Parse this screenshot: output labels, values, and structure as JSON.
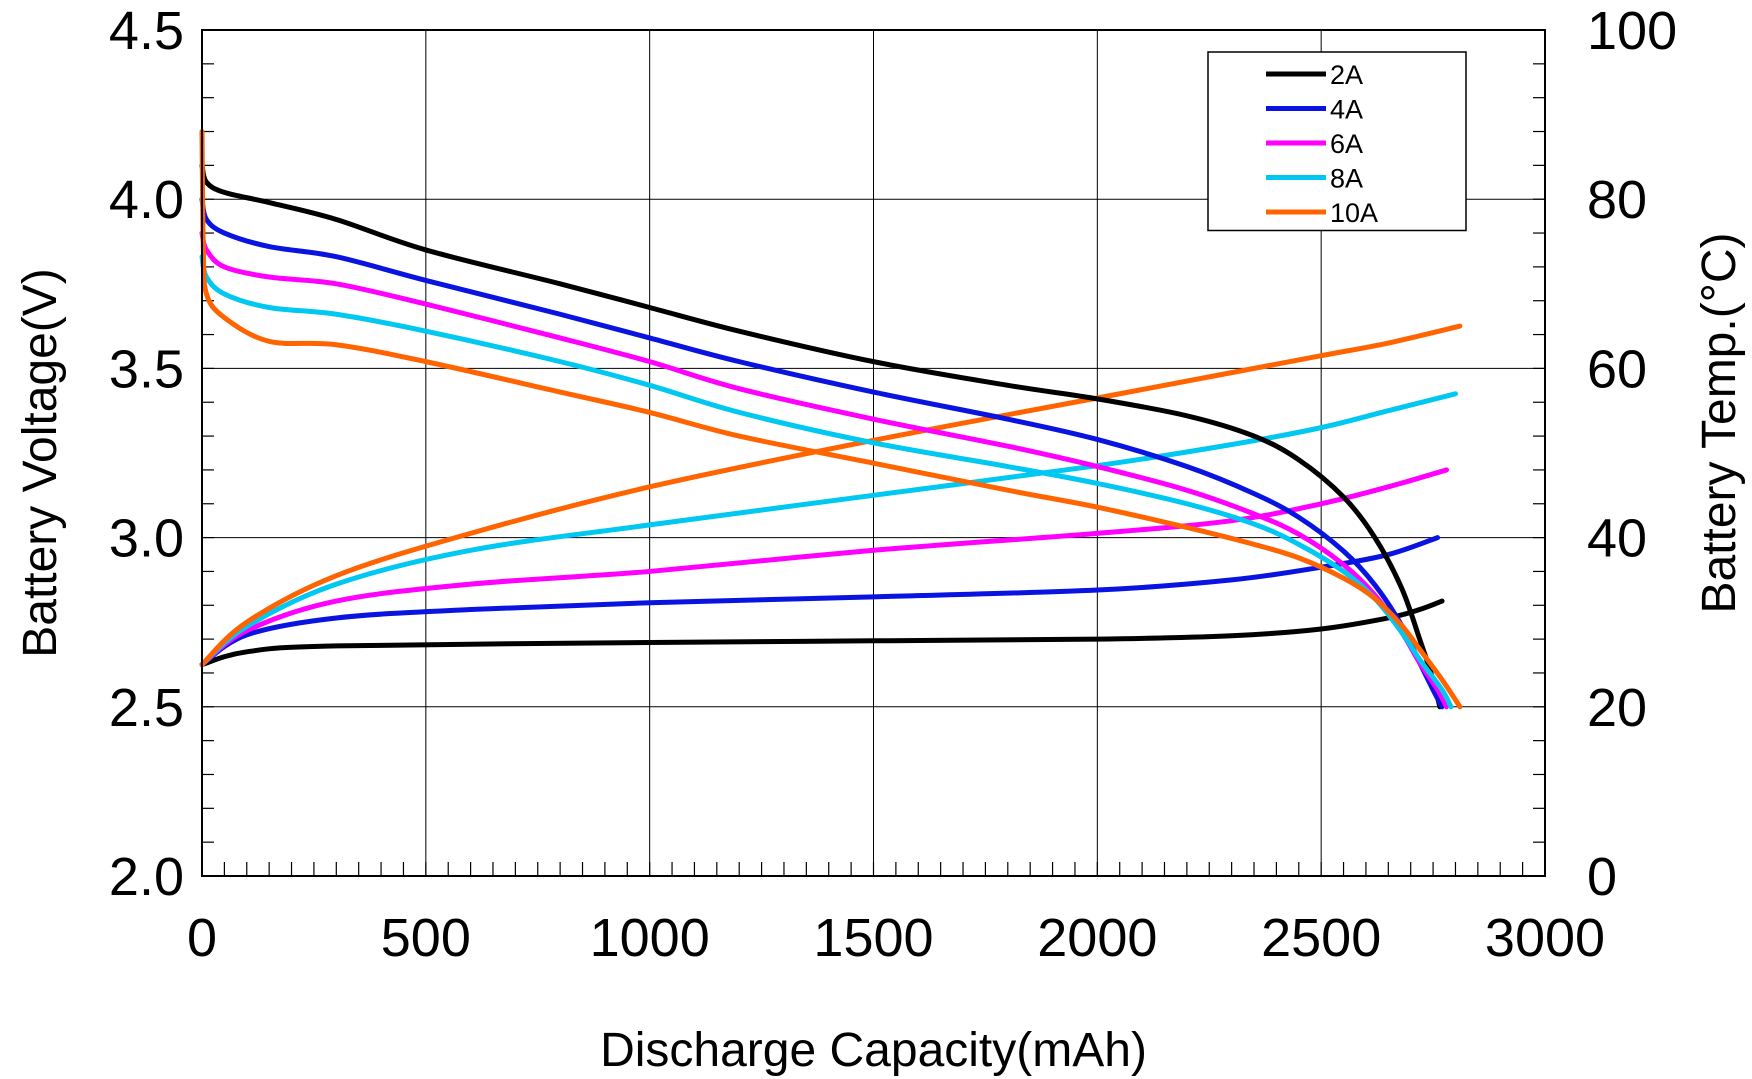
{
  "chart_data": {
    "type": "line",
    "xlabel": "Discharge Capacity(mAh)",
    "ylabel_left": "Battery Voltage(V)",
    "ylabel_right": "Battery Temp.(°C)",
    "xlim": [
      0,
      3000
    ],
    "ylim_left": [
      2.0,
      4.5
    ],
    "ylim_right": [
      0,
      100
    ],
    "x_ticks": [
      "0",
      "500",
      "1000",
      "1500",
      "2000",
      "2500",
      "3000"
    ],
    "y_left_ticks": [
      "2.0",
      "2.5",
      "3.0",
      "3.5",
      "4.0",
      "4.5"
    ],
    "y_right_ticks": [
      "0",
      "20",
      "40",
      "60",
      "80",
      "100"
    ],
    "grid": true,
    "legend_position": "top-right",
    "series": [
      {
        "name": "2A",
        "color": "#000000",
        "voltage": [
          [
            0,
            4.1
          ],
          [
            10,
            4.05
          ],
          [
            50,
            4.02
          ],
          [
            150,
            3.99
          ],
          [
            300,
            3.94
          ],
          [
            500,
            3.85
          ],
          [
            800,
            3.75
          ],
          [
            1000,
            3.68
          ],
          [
            1200,
            3.61
          ],
          [
            1500,
            3.52
          ],
          [
            1800,
            3.45
          ],
          [
            2000,
            3.41
          ],
          [
            2200,
            3.36
          ],
          [
            2350,
            3.3
          ],
          [
            2450,
            3.23
          ],
          [
            2550,
            3.12
          ],
          [
            2620,
            3.0
          ],
          [
            2680,
            2.85
          ],
          [
            2720,
            2.7
          ],
          [
            2750,
            2.58
          ],
          [
            2765,
            2.5
          ]
        ],
        "temperature": [
          [
            0,
            25
          ],
          [
            100,
            26.5
          ],
          [
            300,
            27.2
          ],
          [
            1000,
            27.6
          ],
          [
            1500,
            27.8
          ],
          [
            2000,
            28.0
          ],
          [
            2300,
            28.4
          ],
          [
            2500,
            29.2
          ],
          [
            2650,
            30.5
          ],
          [
            2720,
            31.5
          ],
          [
            2770,
            32.5
          ]
        ]
      },
      {
        "name": "4A",
        "color": "#0a14e0",
        "voltage": [
          [
            0,
            4.0
          ],
          [
            10,
            3.94
          ],
          [
            50,
            3.9
          ],
          [
            150,
            3.86
          ],
          [
            300,
            3.83
          ],
          [
            500,
            3.76
          ],
          [
            800,
            3.66
          ],
          [
            1000,
            3.59
          ],
          [
            1200,
            3.52
          ],
          [
            1500,
            3.43
          ],
          [
            1800,
            3.35
          ],
          [
            2000,
            3.29
          ],
          [
            2200,
            3.21
          ],
          [
            2350,
            3.13
          ],
          [
            2450,
            3.06
          ],
          [
            2550,
            2.96
          ],
          [
            2620,
            2.86
          ],
          [
            2680,
            2.74
          ],
          [
            2720,
            2.63
          ],
          [
            2750,
            2.55
          ],
          [
            2770,
            2.5
          ]
        ],
        "temperature": [
          [
            0,
            25
          ],
          [
            100,
            28.5
          ],
          [
            300,
            30.5
          ],
          [
            600,
            31.5
          ],
          [
            1000,
            32.3
          ],
          [
            1500,
            33.0
          ],
          [
            2000,
            33.8
          ],
          [
            2300,
            35.0
          ],
          [
            2500,
            36.5
          ],
          [
            2650,
            38.0
          ],
          [
            2760,
            40.0
          ]
        ]
      },
      {
        "name": "6A",
        "color": "#ff00ff",
        "voltage": [
          [
            0,
            3.9
          ],
          [
            10,
            3.85
          ],
          [
            50,
            3.8
          ],
          [
            150,
            3.77
          ],
          [
            300,
            3.75
          ],
          [
            500,
            3.69
          ],
          [
            800,
            3.59
          ],
          [
            1000,
            3.52
          ],
          [
            1200,
            3.44
          ],
          [
            1500,
            3.35
          ],
          [
            1800,
            3.27
          ],
          [
            2000,
            3.21
          ],
          [
            2200,
            3.14
          ],
          [
            2350,
            3.07
          ],
          [
            2450,
            3.01
          ],
          [
            2550,
            2.92
          ],
          [
            2620,
            2.83
          ],
          [
            2680,
            2.72
          ],
          [
            2720,
            2.63
          ],
          [
            2760,
            2.55
          ],
          [
            2780,
            2.5
          ]
        ],
        "temperature": [
          [
            0,
            25
          ],
          [
            100,
            29.0
          ],
          [
            300,
            32.5
          ],
          [
            600,
            34.5
          ],
          [
            1000,
            36.0
          ],
          [
            1500,
            38.5
          ],
          [
            2000,
            40.5
          ],
          [
            2300,
            42.0
          ],
          [
            2500,
            44.0
          ],
          [
            2650,
            46.0
          ],
          [
            2780,
            48.0
          ]
        ]
      },
      {
        "name": "8A",
        "color": "#00c8f0",
        "voltage": [
          [
            0,
            3.83
          ],
          [
            10,
            3.77
          ],
          [
            50,
            3.72
          ],
          [
            150,
            3.68
          ],
          [
            300,
            3.66
          ],
          [
            500,
            3.61
          ],
          [
            800,
            3.52
          ],
          [
            1000,
            3.45
          ],
          [
            1200,
            3.37
          ],
          [
            1500,
            3.28
          ],
          [
            1800,
            3.21
          ],
          [
            2000,
            3.16
          ],
          [
            2200,
            3.1
          ],
          [
            2350,
            3.04
          ],
          [
            2450,
            2.98
          ],
          [
            2550,
            2.9
          ],
          [
            2620,
            2.82
          ],
          [
            2680,
            2.72
          ],
          [
            2720,
            2.64
          ],
          [
            2770,
            2.55
          ],
          [
            2790,
            2.5
          ]
        ],
        "temperature": [
          [
            0,
            25
          ],
          [
            100,
            29.5
          ],
          [
            300,
            34.5
          ],
          [
            600,
            38.5
          ],
          [
            1000,
            41.5
          ],
          [
            1500,
            45.0
          ],
          [
            2000,
            48.5
          ],
          [
            2300,
            51.0
          ],
          [
            2500,
            53.0
          ],
          [
            2650,
            55.0
          ],
          [
            2800,
            57.0
          ]
        ]
      },
      {
        "name": "10A",
        "color": "#ff6400",
        "voltage": [
          [
            0,
            4.2
          ],
          [
            3,
            3.85
          ],
          [
            10,
            3.72
          ],
          [
            50,
            3.65
          ],
          [
            150,
            3.58
          ],
          [
            300,
            3.57
          ],
          [
            500,
            3.52
          ],
          [
            800,
            3.43
          ],
          [
            1000,
            3.37
          ],
          [
            1200,
            3.3
          ],
          [
            1500,
            3.22
          ],
          [
            1800,
            3.14
          ],
          [
            2000,
            3.09
          ],
          [
            2200,
            3.03
          ],
          [
            2350,
            2.98
          ],
          [
            2450,
            2.94
          ],
          [
            2550,
            2.88
          ],
          [
            2620,
            2.82
          ],
          [
            2680,
            2.74
          ],
          [
            2720,
            2.67
          ],
          [
            2770,
            2.58
          ],
          [
            2810,
            2.5
          ]
        ],
        "temperature": [
          [
            0,
            25
          ],
          [
            100,
            30.0
          ],
          [
            300,
            35.5
          ],
          [
            600,
            40.5
          ],
          [
            1000,
            46.0
          ],
          [
            1500,
            51.5
          ],
          [
            2000,
            56.5
          ],
          [
            2300,
            59.5
          ],
          [
            2500,
            61.5
          ],
          [
            2650,
            63.0
          ],
          [
            2810,
            65.0
          ]
        ]
      }
    ]
  }
}
